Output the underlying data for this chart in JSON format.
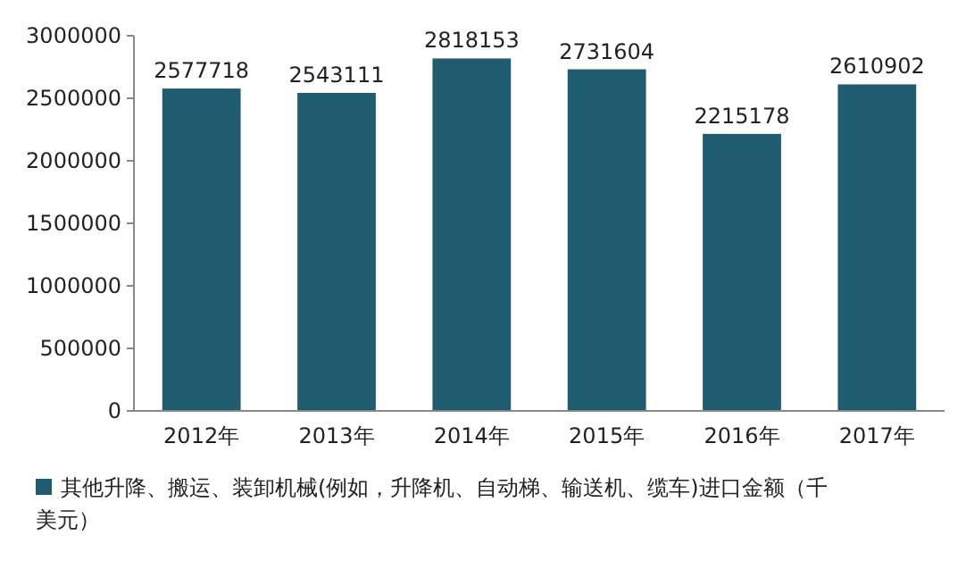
{
  "chart_data": {
    "type": "bar",
    "categories": [
      "2012年",
      "2013年",
      "2014年",
      "2015年",
      "2016年",
      "2017年"
    ],
    "series": [
      {
        "name": "其他升降、搬运、装卸机械(例如，升降机、自动梯、输送机、缆车)进口金额（千美元）",
        "color": "#1f5c70",
        "values": [
          2577718,
          2543111,
          2818153,
          2731604,
          2215178,
          2610902
        ]
      }
    ],
    "ylim": [
      0,
      3000000
    ],
    "yticks": [
      0,
      500000,
      1000000,
      1500000,
      2000000,
      2500000,
      3000000
    ],
    "data_labels": true,
    "legend": "bottom",
    "grid": false
  }
}
